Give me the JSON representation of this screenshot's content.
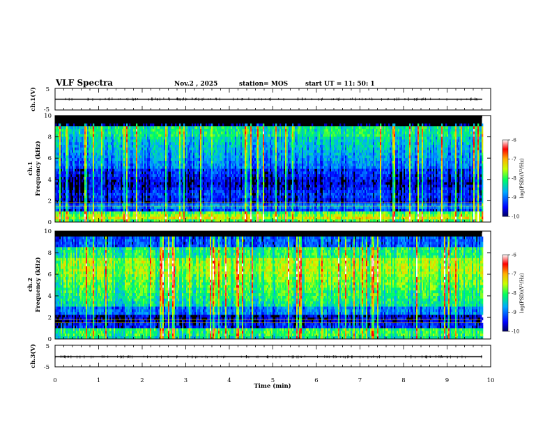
{
  "header": {
    "title": "VLF Spectra",
    "date": "Nov.2  , 2025",
    "station": "station= MOS",
    "start_ut": "start  UT  =    11: 50: 1"
  },
  "chart_data": [
    {
      "id": "ch1-waveform",
      "type": "line",
      "ylabel": "ch.1(V)",
      "ylim": [
        -5,
        5
      ],
      "yticks": [
        "5",
        "-5"
      ],
      "xlim": [
        0,
        10
      ],
      "level": 0,
      "grid": false
    },
    {
      "id": "ch1-spectrogram",
      "type": "heatmap",
      "ylabel": "ch.1\nFrequency (kHz)",
      "ylim": [
        0,
        10
      ],
      "yticks": [
        "0",
        "2",
        "4",
        "6",
        "8",
        "10"
      ],
      "xlim": [
        0,
        10
      ],
      "colorbar": {
        "label": "log(PSD)(V²/Hz)",
        "range": [
          -10,
          -6
        ],
        "ticks": [
          "-6",
          "-7",
          "-8",
          "-9",
          "-10"
        ]
      },
      "band_max_khz": 9.2,
      "intensity_profile": "broadband 0-9 kHz, strong 0-1 kHz, weaker 1.5-5 kHz"
    },
    {
      "id": "ch2-spectrogram",
      "type": "heatmap",
      "ylabel": "ch.2\nFrequency (kHz)",
      "ylim": [
        0,
        10
      ],
      "yticks": [
        "0",
        "2",
        "4",
        "6",
        "8",
        "10"
      ],
      "xlim": [
        0,
        10
      ],
      "colorbar": {
        "label": "log(PSD)(V²/Hz)",
        "range": [
          -10,
          -6
        ],
        "ticks": [
          "-6",
          "-7",
          "-8",
          "-9",
          "-10"
        ]
      },
      "band_max_khz": 9.5,
      "intensity_profile": "strong 3-8 kHz, peak near 6-7 kHz, gap near 2 kHz"
    },
    {
      "id": "ch3-waveform",
      "type": "line",
      "ylabel": "ch.3(V)",
      "ylim": [
        -5,
        5
      ],
      "yticks": [
        "5",
        "-5"
      ],
      "xlim": [
        0,
        10
      ],
      "level": 0,
      "grid": false
    }
  ],
  "xaxis": {
    "label": "Time  (min)",
    "ticks": [
      "0",
      "1",
      "2",
      "3",
      "4",
      "5",
      "6",
      "7",
      "8",
      "9",
      "10"
    ],
    "data_end": 9.8
  },
  "colors": {
    "background": "#ffffff",
    "axes": "#000000",
    "colormap_low": "#0000ff",
    "colormap_high": "#ff0000"
  }
}
